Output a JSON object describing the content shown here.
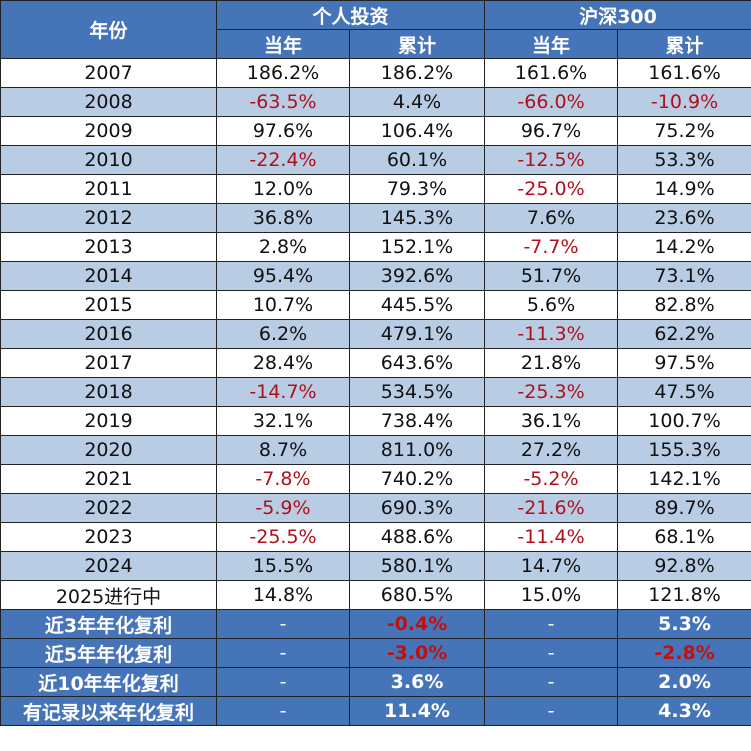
{
  "header": {
    "year_label": "年份",
    "group1": "个人投资",
    "group2": "沪深300",
    "sub_current": "当年",
    "sub_cumulative": "累计"
  },
  "rows": [
    {
      "year": "2007",
      "p_cur": "186.2%",
      "p_cum": "186.2%",
      "h_cur": "161.6%",
      "h_cum": "161.6%"
    },
    {
      "year": "2008",
      "p_cur": "-63.5%",
      "p_cum": "4.4%",
      "h_cur": "-66.0%",
      "h_cum": "-10.9%"
    },
    {
      "year": "2009",
      "p_cur": "97.6%",
      "p_cum": "106.4%",
      "h_cur": "96.7%",
      "h_cum": "75.2%"
    },
    {
      "year": "2010",
      "p_cur": "-22.4%",
      "p_cum": "60.1%",
      "h_cur": "-12.5%",
      "h_cum": "53.3%"
    },
    {
      "year": "2011",
      "p_cur": "12.0%",
      "p_cum": "79.3%",
      "h_cur": "-25.0%",
      "h_cum": "14.9%"
    },
    {
      "year": "2012",
      "p_cur": "36.8%",
      "p_cum": "145.3%",
      "h_cur": "7.6%",
      "h_cum": "23.6%"
    },
    {
      "year": "2013",
      "p_cur": "2.8%",
      "p_cum": "152.1%",
      "h_cur": "-7.7%",
      "h_cum": "14.2%"
    },
    {
      "year": "2014",
      "p_cur": "95.4%",
      "p_cum": "392.6%",
      "h_cur": "51.7%",
      "h_cum": "73.1%"
    },
    {
      "year": "2015",
      "p_cur": "10.7%",
      "p_cum": "445.5%",
      "h_cur": "5.6%",
      "h_cum": "82.8%"
    },
    {
      "year": "2016",
      "p_cur": "6.2%",
      "p_cum": "479.1%",
      "h_cur": "-11.3%",
      "h_cum": "62.2%"
    },
    {
      "year": "2017",
      "p_cur": "28.4%",
      "p_cum": "643.6%",
      "h_cur": "21.8%",
      "h_cum": "97.5%"
    },
    {
      "year": "2018",
      "p_cur": "-14.7%",
      "p_cum": "534.5%",
      "h_cur": "-25.3%",
      "h_cum": "47.5%"
    },
    {
      "year": "2019",
      "p_cur": "32.1%",
      "p_cum": "738.4%",
      "h_cur": "36.1%",
      "h_cum": "100.7%"
    },
    {
      "year": "2020",
      "p_cur": "8.7%",
      "p_cum": "811.0%",
      "h_cur": "27.2%",
      "h_cum": "155.3%"
    },
    {
      "year": "2021",
      "p_cur": "-7.8%",
      "p_cum": "740.2%",
      "h_cur": "-5.2%",
      "h_cum": "142.1%"
    },
    {
      "year": "2022",
      "p_cur": "-5.9%",
      "p_cum": "690.3%",
      "h_cur": "-21.6%",
      "h_cum": "89.7%"
    },
    {
      "year": "2023",
      "p_cur": "-25.5%",
      "p_cum": "488.6%",
      "h_cur": "-11.4%",
      "h_cum": "68.1%"
    },
    {
      "year": "2024",
      "p_cur": "15.5%",
      "p_cum": "580.1%",
      "h_cur": "14.7%",
      "h_cum": "92.8%"
    },
    {
      "year": "2025进行中",
      "p_cur": "14.8%",
      "p_cum": "680.5%",
      "h_cur": "15.0%",
      "h_cum": "121.8%"
    }
  ],
  "summary": [
    {
      "label": "近3年年化复利",
      "p_cur": "-",
      "p_cum": "-0.4%",
      "h_cur": "-",
      "h_cum": "5.3%"
    },
    {
      "label": "近5年年化复利",
      "p_cur": "-",
      "p_cum": "-3.0%",
      "h_cur": "-",
      "h_cum": "-2.8%"
    },
    {
      "label": "近10年年化复利",
      "p_cur": "-",
      "p_cum": "3.6%",
      "h_cur": "-",
      "h_cum": "2.0%"
    },
    {
      "label": "有记录以来年化复利",
      "p_cur": "-",
      "p_cum": "11.4%",
      "h_cur": "-",
      "h_cum": "4.3%"
    }
  ],
  "colors": {
    "header_bg": "#4674b8",
    "stripe_bg": "#b8cce4",
    "negative_text": "#b0101a",
    "summary_negative_text": "#c01010"
  }
}
